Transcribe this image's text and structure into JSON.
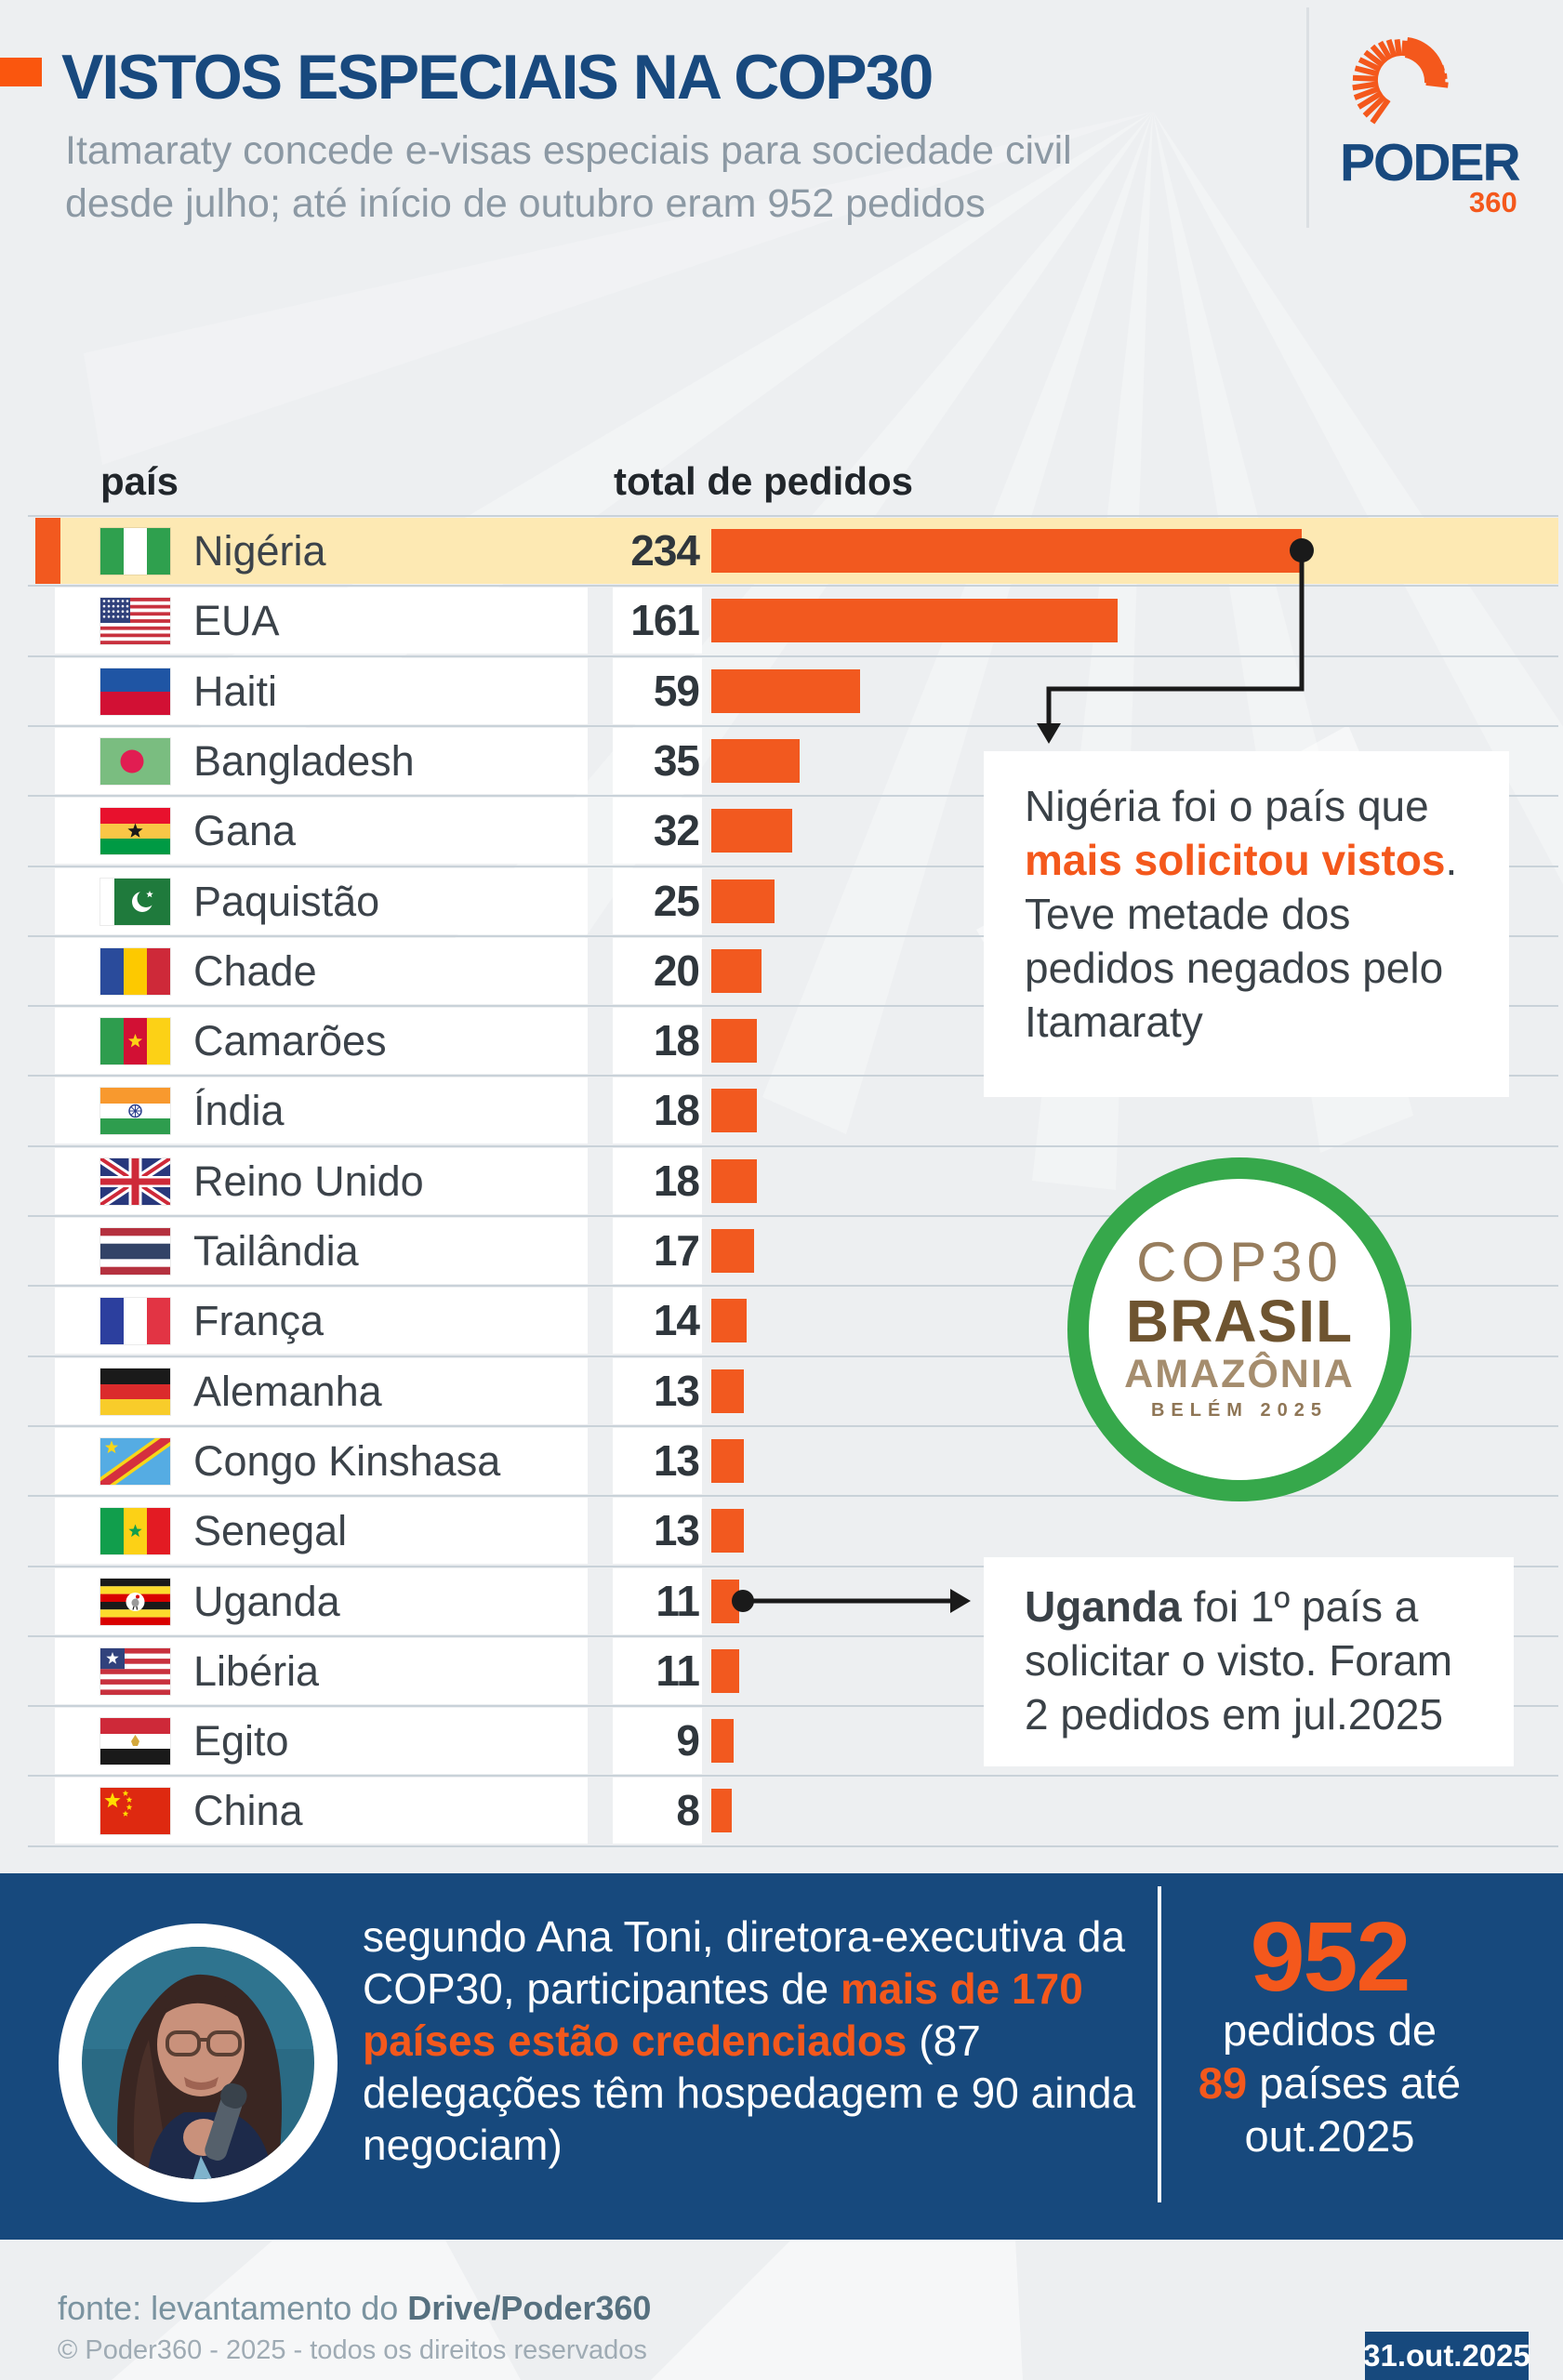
{
  "header": {
    "title": "VISTOS ESPECIAIS NA COP30",
    "subtitle_line1": "Itamaraty concede e-visas especiais para sociedade civil",
    "subtitle_line2": "desde julho; até início de outubro eram 952 pedidos",
    "logo_word": "PODER",
    "logo_360": "360"
  },
  "table": {
    "col_country": "país",
    "col_total": "total de pedidos",
    "rows": [
      {
        "name": "Nigéria",
        "value": 234,
        "flag": "ng",
        "highlight": true
      },
      {
        "name": "EUA",
        "value": 161,
        "flag": "us",
        "highlight": false
      },
      {
        "name": "Haiti",
        "value": 59,
        "flag": "ht",
        "highlight": false
      },
      {
        "name": "Bangladesh",
        "value": 35,
        "flag": "bd",
        "highlight": false
      },
      {
        "name": "Gana",
        "value": 32,
        "flag": "gh",
        "highlight": false
      },
      {
        "name": "Paquistão",
        "value": 25,
        "flag": "pk",
        "highlight": false
      },
      {
        "name": "Chade",
        "value": 20,
        "flag": "td",
        "highlight": false
      },
      {
        "name": "Camarões",
        "value": 18,
        "flag": "cm",
        "highlight": false
      },
      {
        "name": "Índia",
        "value": 18,
        "flag": "in",
        "highlight": false
      },
      {
        "name": "Reino Unido",
        "value": 18,
        "flag": "gb",
        "highlight": false
      },
      {
        "name": "Tailândia",
        "value": 17,
        "flag": "th",
        "highlight": false
      },
      {
        "name": "França",
        "value": 14,
        "flag": "fr",
        "highlight": false
      },
      {
        "name": "Alemanha",
        "value": 13,
        "flag": "de",
        "highlight": false
      },
      {
        "name": "Congo Kinshasa",
        "value": 13,
        "flag": "cd",
        "highlight": false
      },
      {
        "name": "Senegal",
        "value": 13,
        "flag": "sn",
        "highlight": false
      },
      {
        "name": "Uganda",
        "value": 11,
        "flag": "ug",
        "highlight": false
      },
      {
        "name": "Libéria",
        "value": 11,
        "flag": "lr",
        "highlight": false
      },
      {
        "name": "Egito",
        "value": 9,
        "flag": "eg",
        "highlight": false
      },
      {
        "name": "China",
        "value": 8,
        "flag": "cn",
        "highlight": false
      }
    ]
  },
  "annotations": {
    "nigeria_pre": "Nigéria foi o país que ",
    "nigeria_highlight": "mais solicitou vistos",
    "nigeria_post": ". Teve metade dos pedidos negados pelo Itamaraty",
    "uganda_bold": "Uganda",
    "uganda_rest": " foi 1º país a solicitar o visto. Foram 2 pedidos em jul.2025"
  },
  "cop30_badge": {
    "line1": "COP30",
    "line2": "BRASIL",
    "line3": "AMAZÔNIA",
    "line4": "BELÉM 2025"
  },
  "quote": {
    "pre": "segundo Ana Toni, diretora-executiva da COP30, participantes de ",
    "highlight": "mais de 170 países estão credenciados",
    "post": " (87 delegações têm hospedagem e 90 ainda negociam)"
  },
  "stat": {
    "number": "952",
    "line1": "pedidos de",
    "num2": "89",
    "line2_rest": " países até",
    "line3": "out.2025"
  },
  "footer": {
    "source_pre": "fonte: levantamento do ",
    "source_bold": "Drive/Poder360",
    "copyright": "© Poder360 - 2025 - todos os direitos reservados",
    "date": "31.out.2025"
  },
  "colors": {
    "accent_orange": "#F2591F",
    "bright_orange": "#FA560E",
    "navy": "#17497D",
    "title_navy": "#18497E",
    "highlight_yellow": "#FDE9B3",
    "separator": "#C9D2D9",
    "page_bg": "#EDEFF1",
    "cop_green": "#36A84B"
  },
  "chart_data": {
    "type": "bar",
    "orientation": "horizontal",
    "title": "VISTOS ESPECIAIS NA COP30",
    "subtitle": "Itamaraty concede e-visas especiais para sociedade civil desde julho; até início de outubro eram 952 pedidos",
    "categories": [
      "Nigéria",
      "EUA",
      "Haiti",
      "Bangladesh",
      "Gana",
      "Paquistão",
      "Chade",
      "Camarões",
      "Índia",
      "Reino Unido",
      "Tailândia",
      "França",
      "Alemanha",
      "Congo Kinshasa",
      "Senegal",
      "Uganda",
      "Libéria",
      "Egito",
      "China"
    ],
    "values": [
      234,
      161,
      59,
      35,
      32,
      25,
      20,
      18,
      18,
      18,
      17,
      14,
      13,
      13,
      13,
      11,
      11,
      9,
      8
    ],
    "xlabel": "total de pedidos",
    "ylabel": "país",
    "xlim": [
      0,
      240
    ],
    "grid": false,
    "legend": false,
    "annotations": [
      "Nigéria foi o país que mais solicitou vistos. Teve metade dos pedidos negados pelo Itamaraty",
      "Uganda foi 1º país a solicitar o visto. Foram 2 pedidos em jul.2025"
    ],
    "totals": "952 pedidos de 89 países até out.2025"
  }
}
